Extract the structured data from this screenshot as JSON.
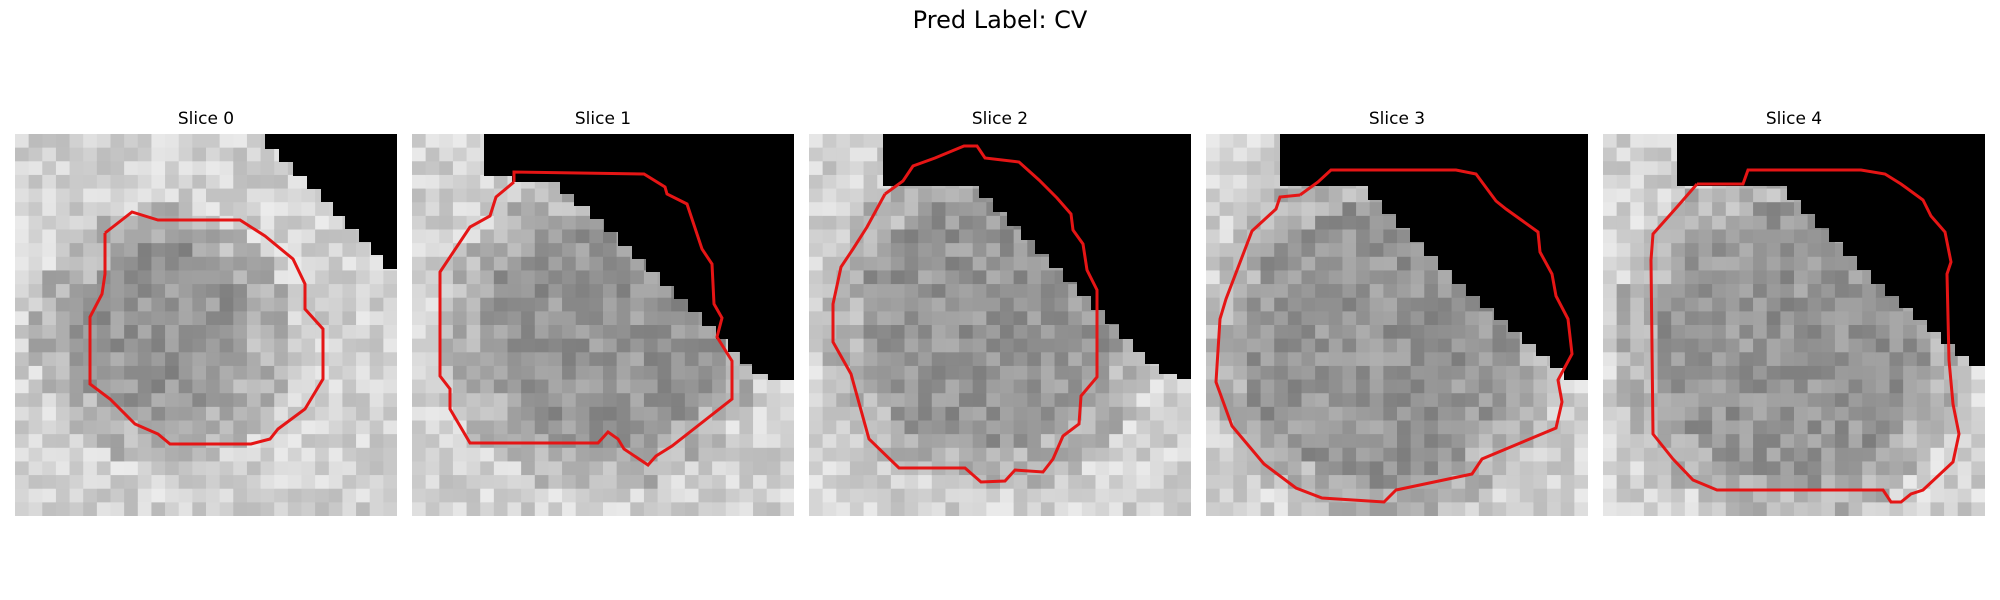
{
  "figure": {
    "title": "Pred Label: CV"
  },
  "panels": [
    {
      "id": 0,
      "title": "Slice 0"
    },
    {
      "id": 1,
      "title": "Slice 1"
    },
    {
      "id": 2,
      "title": "Slice 2"
    },
    {
      "id": 3,
      "title": "Slice 3"
    },
    {
      "id": 4,
      "title": "Slice 4"
    }
  ],
  "colors": {
    "contour": "#e51515",
    "background_mask": "#000000"
  }
}
